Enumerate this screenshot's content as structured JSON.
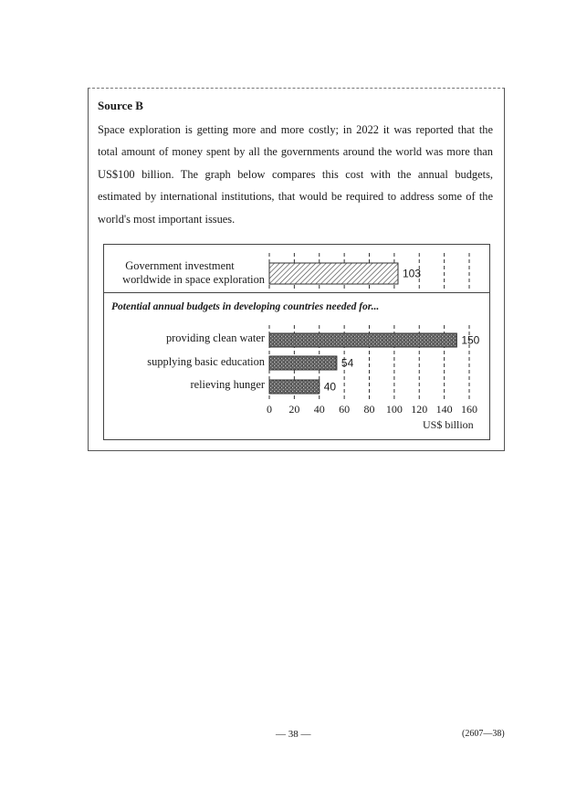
{
  "source_title": "Source B",
  "paragraph": "Space exploration is getting more and more costly; in 2022 it was reported that the total amount of money spent by all the governments around the world was more than US$100 billion. The graph below compares this cost with the annual budgets, estimated by international institutions, that would be required to address some of the world's most important issues.",
  "chart_data": {
    "type": "bar",
    "orientation": "horizontal",
    "groups": [
      {
        "heading": "",
        "categories": [
          "Government investment worldwide in space exploration"
        ],
        "values": [
          103
        ],
        "fill": "hatched"
      },
      {
        "heading": "Potential annual budgets in developing countries needed for...",
        "categories": [
          "providing clean water",
          "supplying basic education",
          "relieving hunger"
        ],
        "values": [
          150,
          54,
          40
        ],
        "fill": "dark-stipple"
      }
    ],
    "category_label_lines": [
      "Government investment",
      "worldwide in space exploration"
    ],
    "xlabel": "US$ billion",
    "xlim": [
      0,
      160
    ],
    "xticks": [
      "0",
      "20",
      "40",
      "60",
      "80",
      "100",
      "120",
      "140",
      "160"
    ],
    "data_labels": [
      "103",
      "150",
      "54",
      "40"
    ],
    "grid": "vertical dashed",
    "colors": {
      "hatch": "#444444",
      "stipple": "#555555"
    }
  },
  "footer": {
    "page_number": "— 38 —",
    "code": "(2607—38)"
  }
}
